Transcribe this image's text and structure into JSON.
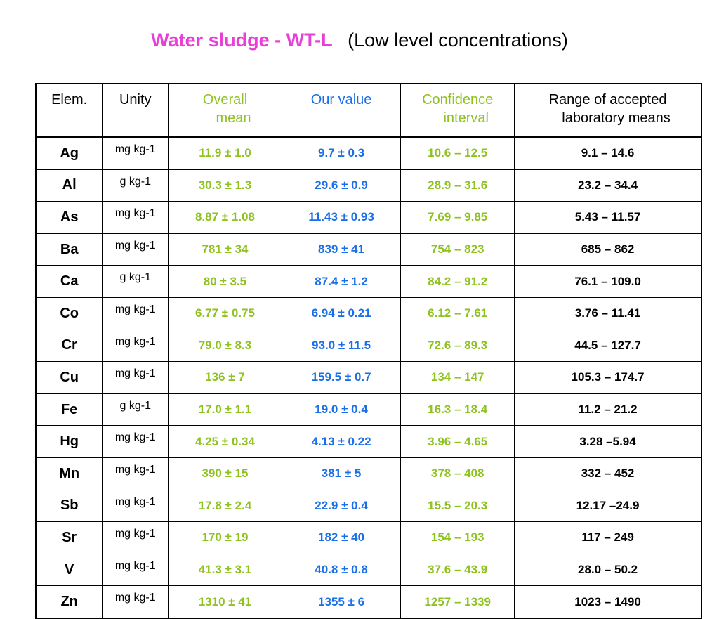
{
  "title": {
    "main": "Water sludge - WT-L",
    "sub": "(Low level concentrations)"
  },
  "colors": {
    "title": "#e83fd6",
    "overall_mean": "#8dc21f",
    "our_value": "#1a6fe8",
    "confidence": "#8dc21f",
    "range": "#000000"
  },
  "headers": {
    "elem": "Elem.",
    "unity": "Unity",
    "overall_l1": "Overall",
    "overall_l2": "mean",
    "our_value": "Our value",
    "confidence_l1": "Confidence",
    "confidence_l2": "interval",
    "range_l1": "Range of accepted",
    "range_l2": "laboratory means"
  },
  "rows": [
    {
      "elem": "Ag",
      "unit": "mg kg-1",
      "mean": "11.9 ± 1.0",
      "ours": "9.7 ± 0.3",
      "ci": "10.6 – 12.5",
      "range": "9.1 – 14.6"
    },
    {
      "elem": "Al",
      "unit": "g kg-1",
      "mean": "30.3 ± 1.3",
      "ours": "29.6 ± 0.9",
      "ci": "28.9 – 31.6",
      "range": "23.2 – 34.4"
    },
    {
      "elem": "As",
      "unit": "mg kg-1",
      "mean": "8.87 ± 1.08",
      "ours": "11.43 ± 0.93",
      "ci": "7.69 – 9.85",
      "range": "5.43 – 11.57"
    },
    {
      "elem": "Ba",
      "unit": "mg kg-1",
      "mean": "781 ± 34",
      "ours": "839 ± 41",
      "ci": "754 – 823",
      "range": "685 – 862"
    },
    {
      "elem": "Ca",
      "unit": "g kg-1",
      "mean": "80 ± 3.5",
      "ours": "87.4 ± 1.2",
      "ci": "84.2 – 91.2",
      "range": "76.1 – 109.0"
    },
    {
      "elem": "Co",
      "unit": "mg kg-1",
      "mean": "6.77 ± 0.75",
      "ours": "6.94 ± 0.21",
      "ci": "6.12 – 7.61",
      "range": "3.76 – 11.41"
    },
    {
      "elem": "Cr",
      "unit": "mg kg-1",
      "mean": "79.0 ± 8.3",
      "ours": "93.0 ± 11.5",
      "ci": "72.6 – 89.3",
      "range": "44.5 – 127.7"
    },
    {
      "elem": "Cu",
      "unit": "mg kg-1",
      "mean": "136 ± 7",
      "ours": "159.5 ± 0.7",
      "ci": "134 – 147",
      "range": "105.3 – 174.7"
    },
    {
      "elem": "Fe",
      "unit": "g kg-1",
      "mean": "17.0 ± 1.1",
      "ours": "19.0 ± 0.4",
      "ci": "16.3 – 18.4",
      "range": "11.2 – 21.2"
    },
    {
      "elem": "Hg",
      "unit": "mg kg-1",
      "mean": "4.25 ± 0.34",
      "ours": "4.13 ± 0.22",
      "ci": "3.96 – 4.65",
      "range": "3.28 –5.94"
    },
    {
      "elem": "Mn",
      "unit": "mg kg-1",
      "mean": "390 ± 15",
      "ours": "381 ± 5",
      "ci": "378 – 408",
      "range": "332 – 452"
    },
    {
      "elem": "Sb",
      "unit": "mg kg-1",
      "mean": "17.8 ± 2.4",
      "ours": "22.9 ± 0.4",
      "ci": "15.5 – 20.3",
      "range": "12.17 –24.9"
    },
    {
      "elem": "Sr",
      "unit": "mg kg-1",
      "mean": "170 ± 19",
      "ours": "182 ± 40",
      "ci": "154 – 193",
      "range": "117 – 249"
    },
    {
      "elem": "V",
      "unit": "mg kg-1",
      "mean": "41.3 ± 3.1",
      "ours": "40.8 ± 0.8",
      "ci": "37.6 – 43.9",
      "range": "28.0 – 50.2"
    },
    {
      "elem": "Zn",
      "unit": "mg kg-1",
      "mean": "1310 ± 41",
      "ours": "1355 ± 6",
      "ci": "1257 – 1339",
      "range": "1023 – 1490"
    }
  ]
}
